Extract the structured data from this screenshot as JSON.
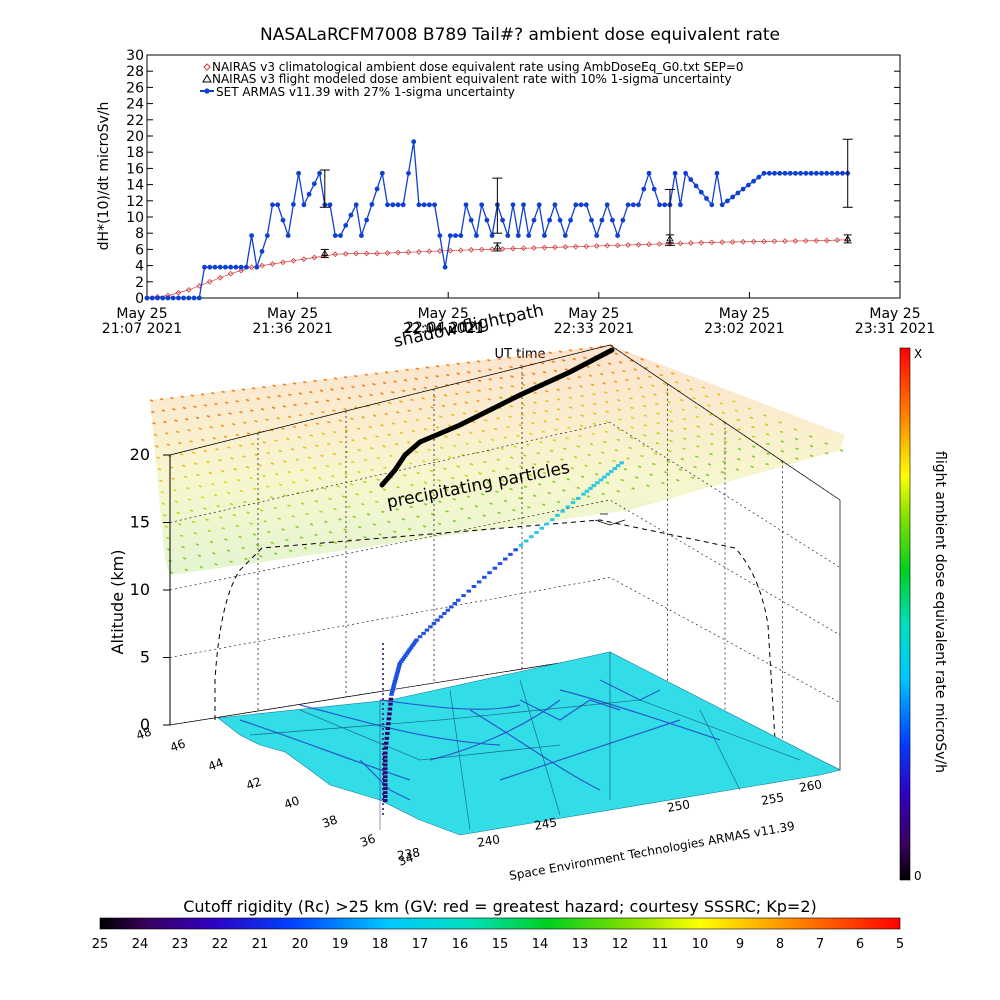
{
  "chart_data": [
    {
      "type": "line",
      "title": "NASALaRCFM7008  B789 Tail#? ambient dose equivalent rate",
      "ylabel": "dH*(10)/dt microSv/h",
      "xlabel": "UT time",
      "ylim": [
        0,
        30
      ],
      "yticks": [
        0,
        2,
        4,
        6,
        8,
        10,
        12,
        14,
        16,
        18,
        20,
        22,
        24,
        26,
        28,
        30
      ],
      "xlim": [
        "2021-05-25 21:07",
        "2021-05-25 23:31"
      ],
      "xticks": [
        {
          "date": "May 25",
          "time": "21:07 2021"
        },
        {
          "date": "May 25",
          "time": "21:36 2021"
        },
        {
          "date": "May 25",
          "time": "22:04 2021"
        },
        {
          "date": "May 25",
          "time": "22:33 2021"
        },
        {
          "date": "May 25",
          "time": "23:02 2021"
        },
        {
          "date": "May 25",
          "time": "23:31 2021"
        }
      ],
      "legend_position": "top-left",
      "series": [
        {
          "name": "NAIRAS v3 climatological ambient dose equivalent rate using AmbDoseEq_G0.txt SEP=0",
          "color": "#d04040",
          "marker": "diamond",
          "x_minutes": [
            0,
            4,
            8,
            12,
            16,
            20,
            24,
            28,
            32,
            36,
            40,
            44,
            48,
            52,
            60,
            70,
            80,
            90,
            100,
            110,
            120,
            130,
            134
          ],
          "values": [
            0,
            0.3,
            1.0,
            2.0,
            3.0,
            3.8,
            4.2,
            4.6,
            5.0,
            5.4,
            5.5,
            5.5,
            5.6,
            5.7,
            5.9,
            6.1,
            6.3,
            6.5,
            6.7,
            6.9,
            7.0,
            7.1,
            7.2
          ]
        },
        {
          "name": "NAIRAS v3 flight modeled dose ambient equivalent rate with 10% 1-sigma uncertainty",
          "color": "#000000",
          "marker": "triangle",
          "x_minutes": [
            34,
            67,
            100,
            134
          ],
          "values": [
            5.5,
            6.3,
            7.3,
            7.3
          ]
        },
        {
          "name": "SET ARMAS v11.39 with 27% 1-sigma uncertainty",
          "color": "#1040d0",
          "marker": "circle",
          "x_minutes": [
            0,
            10,
            11,
            19,
            20,
            21,
            23,
            24,
            25,
            27,
            29,
            30,
            33,
            34,
            35,
            36,
            37,
            40,
            41,
            45,
            46,
            49,
            51,
            52,
            55,
            56,
            57,
            58,
            60,
            61,
            63,
            64,
            66,
            67,
            69,
            70,
            71,
            72,
            73,
            75,
            76,
            78,
            80,
            82,
            84,
            86,
            88,
            90,
            92,
            94,
            96,
            98,
            100,
            101,
            102,
            103,
            108,
            109,
            110,
            118,
            119,
            120,
            121,
            122,
            123,
            124,
            126,
            127,
            128,
            134
          ],
          "values": [
            0,
            0,
            3.8,
            3.8,
            7.7,
            3.8,
            7.7,
            11.5,
            11.5,
            7.7,
            15.4,
            11.5,
            15.4,
            11.5,
            11.5,
            7.7,
            7.7,
            11.5,
            7.7,
            15.4,
            11.5,
            11.5,
            19.3,
            11.5,
            11.5,
            7.7,
            3.8,
            7.7,
            7.7,
            11.5,
            7.7,
            11.5,
            7.7,
            11.5,
            7.7,
            11.5,
            7.7,
            11.5,
            7.7,
            11.5,
            7.7,
            11.5,
            7.7,
            11.5,
            11.5,
            7.7,
            11.5,
            7.7,
            11.5,
            11.5,
            15.4,
            11.5,
            11.5,
            15.4,
            11.5,
            15.4,
            11.5,
            15.4,
            11.5,
            15.4,
            15.4,
            15.4,
            15.4,
            15.4,
            15.4,
            15.4,
            15.4,
            15.4,
            15.4,
            15.4
          ]
        }
      ],
      "error_bars": [
        {
          "x_minutes": 34,
          "low": 11.2,
          "high": 15.8
        },
        {
          "x_minutes": 67,
          "low": 8.0,
          "high": 14.8
        },
        {
          "x_minutes": 100,
          "low": 6.5,
          "high": 13.4
        },
        {
          "x_minutes": 134,
          "low": 11.2,
          "high": 19.6
        }
      ]
    },
    {
      "type": "scatter",
      "subtype": "3d-flightpath",
      "zlabel": "Altitude (km)",
      "zlim": [
        0,
        20
      ],
      "zticks": [
        0,
        5,
        10,
        15,
        20
      ],
      "lat_ticks": [
        "46",
        "44",
        "42",
        "40",
        "38",
        "36",
        "34"
      ],
      "lat_ticks_corner": "48",
      "lon_ticks": [
        "238",
        "240",
        "245",
        "250",
        "255",
        "260"
      ],
      "annotations": [
        "shadow flightpath",
        "precipitating particles",
        "22:04 2021"
      ],
      "credit": "Space Environment Technologies ARMAS v11.39",
      "colorbar": {
        "label": "flight ambient dose equivalent rate microSv/h",
        "min_label": "0",
        "max_label": "X",
        "orientation": "vertical"
      },
      "flight_track": {
        "lon": [
          247.5,
          247.5,
          247.8,
          248.2,
          249.0,
          251.0,
          254.0,
          257.0,
          259.0
        ],
        "alt_km": [
          0.5,
          3.0,
          6.0,
          7.5,
          8.5,
          10.0,
          12.0,
          13.8,
          15.0
        ]
      }
    },
    {
      "type": "heatmap",
      "subtype": "colorbar",
      "label": "Cutoff rigidity (Rc) >25 km (GV: red = greatest hazard; courtesy SSSRC; Kp=2)",
      "ticks": [
        "25",
        "24",
        "23",
        "22",
        "21",
        "20",
        "19",
        "18",
        "17",
        "16",
        "15",
        "14",
        "13",
        "12",
        "11",
        "10",
        "9",
        "8",
        "7",
        "6",
        "5"
      ],
      "range": [
        25,
        5
      ],
      "orientation": "horizontal"
    }
  ],
  "colors": {
    "ground": "#33dde8",
    "armas_series": "#1040d0",
    "nairas_series": "#d04040"
  }
}
